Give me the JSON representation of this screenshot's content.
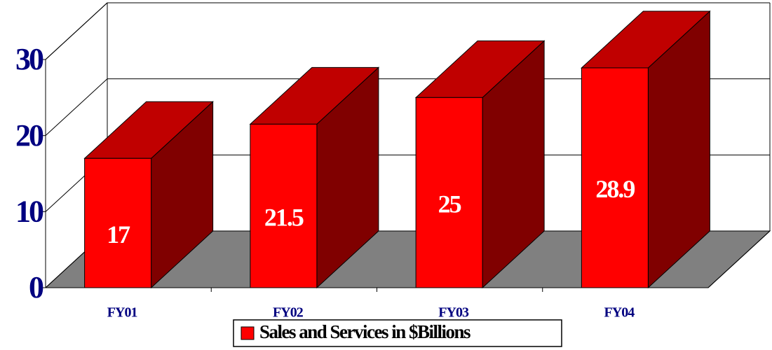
{
  "chart_data": {
    "type": "bar3d",
    "categories": [
      "FY01",
      "FY02",
      "FY03",
      "FY04"
    ],
    "series": [
      {
        "name": "Sales and Services in $Billions",
        "color": "#ff0000",
        "values": [
          17,
          21.5,
          25,
          28.9
        ]
      }
    ],
    "ylim": [
      0,
      30
    ],
    "yticks": [
      0,
      10,
      20,
      30
    ],
    "grid": true,
    "legend": "bottom"
  }
}
